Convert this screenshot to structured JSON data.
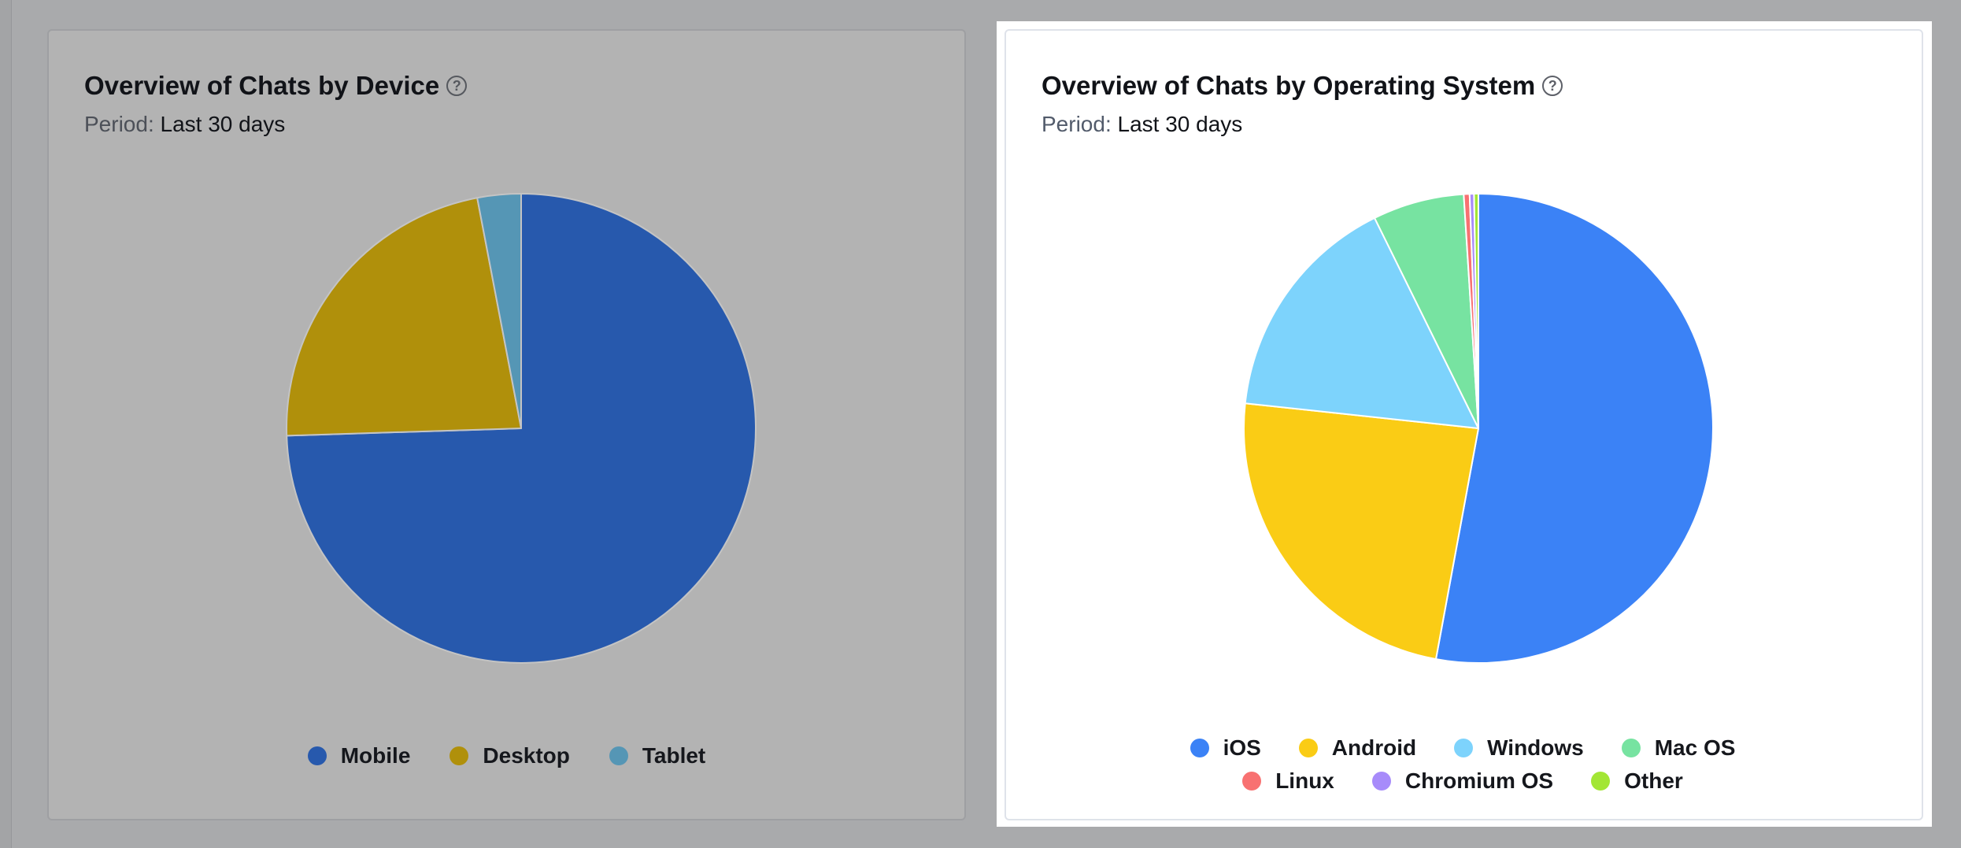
{
  "charts": {
    "device": {
      "title": "Overview of Chats by Device",
      "help_icon": "question-circle-icon",
      "period_label": "Period:",
      "period_value": "Last 30 days"
    },
    "os": {
      "title": "Overview of Chats by Operating System",
      "help_icon": "question-circle-icon",
      "period_label": "Period:",
      "period_value": "Last 30 days"
    }
  },
  "chart_data": [
    {
      "type": "pie",
      "title": "Overview of Chats by Device",
      "subtitle": "Period: Last 30 days",
      "legend_position": "bottom",
      "dimmed": true,
      "slices": [
        {
          "label": "Mobile",
          "value": 74.5,
          "color": "#2759ad"
        },
        {
          "label": "Desktop",
          "value": 22.5,
          "color": "#b0900b"
        },
        {
          "label": "Tablet",
          "value": 3.0,
          "color": "#5596b5"
        }
      ]
    },
    {
      "type": "pie",
      "title": "Overview of Chats by Operating System",
      "subtitle": "Period: Last 30 days",
      "legend_position": "bottom",
      "dimmed": false,
      "slices": [
        {
          "label": "iOS",
          "value": 52.9,
          "color": "#3b82f6"
        },
        {
          "label": "Android",
          "value": 23.8,
          "color": "#facc15"
        },
        {
          "label": "Windows",
          "value": 16.0,
          "color": "#7dd3fc"
        },
        {
          "label": "Mac OS",
          "value": 6.3,
          "color": "#77e3a1"
        },
        {
          "label": "Linux",
          "value": 0.4,
          "color": "#f87171"
        },
        {
          "label": "Chromium OS",
          "value": 0.3,
          "color": "#a78bfa"
        },
        {
          "label": "Other",
          "value": 0.3,
          "color": "#a3e635"
        }
      ]
    }
  ]
}
